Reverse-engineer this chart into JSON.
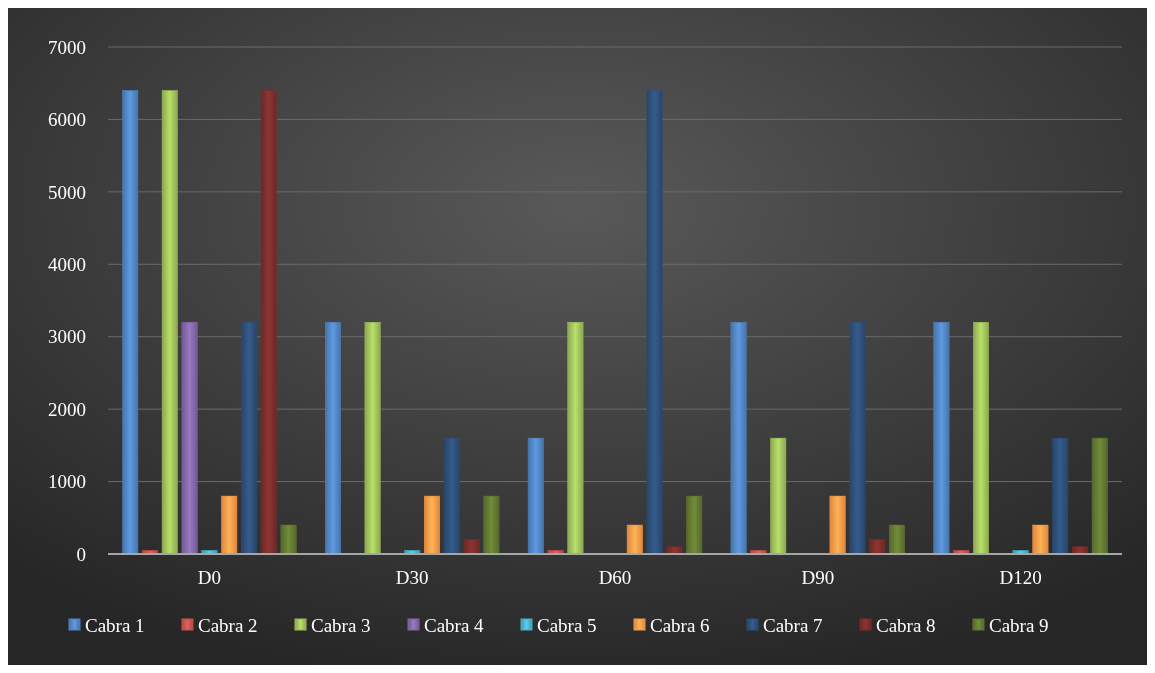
{
  "chart_data": {
    "type": "bar",
    "categories": [
      "D0",
      "D30",
      "D60",
      "D90",
      "D120"
    ],
    "series": [
      {
        "name": "Cabra 1",
        "color": "#4f81bd",
        "values": [
          6400,
          3200,
          1600,
          3200,
          3200
        ]
      },
      {
        "name": "Cabra 2",
        "color": "#c0504d",
        "values": [
          50,
          0,
          50,
          50,
          50
        ]
      },
      {
        "name": "Cabra 3",
        "color": "#9bbb59",
        "values": [
          6400,
          3200,
          3200,
          1600,
          3200
        ]
      },
      {
        "name": "Cabra 4",
        "color": "#8064a2",
        "values": [
          3200,
          0,
          0,
          0,
          0
        ]
      },
      {
        "name": "Cabra 5",
        "color": "#4bacc6",
        "values": [
          50,
          50,
          0,
          0,
          50
        ]
      },
      {
        "name": "Cabra 6",
        "color": "#f79646",
        "values": [
          800,
          800,
          400,
          800,
          400
        ]
      },
      {
        "name": "Cabra 7",
        "color": "#2c4d75",
        "values": [
          3200,
          1600,
          6400,
          3200,
          1600
        ]
      },
      {
        "name": "Cabra 8",
        "color": "#772c2a",
        "values": [
          6400,
          200,
          100,
          200,
          100
        ]
      },
      {
        "name": "Cabra 9",
        "color": "#5f7530",
        "values": [
          400,
          800,
          800,
          400,
          1600
        ]
      }
    ],
    "ylim": [
      0,
      7000
    ],
    "yticks": [
      0,
      1000,
      2000,
      3000,
      4000,
      5000,
      6000,
      7000
    ],
    "grid": "y",
    "legend": "bottom"
  }
}
